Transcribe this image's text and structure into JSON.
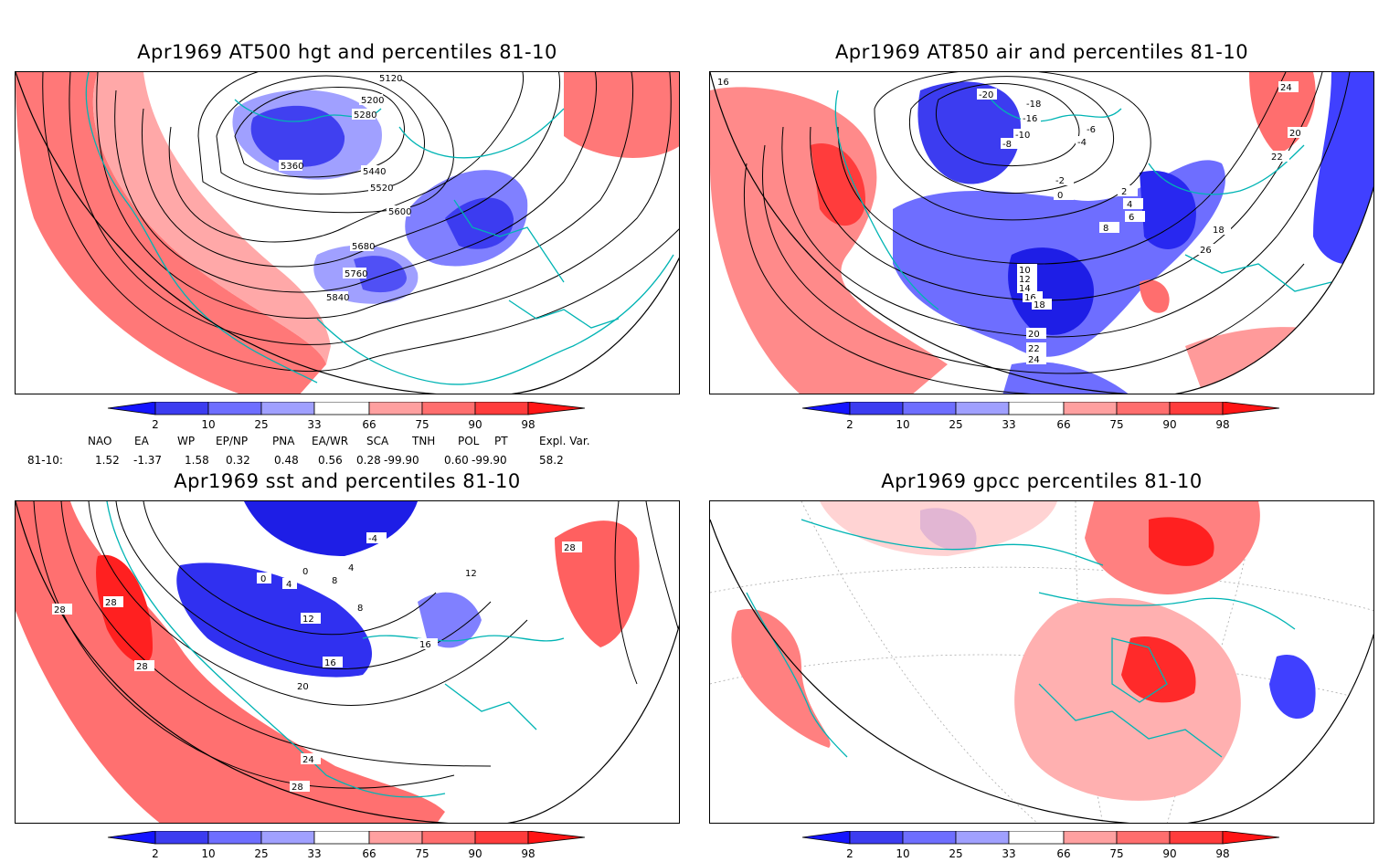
{
  "panels": [
    {
      "id": "p1",
      "title": "Apr1969 AT500 hgt and percentiles 81-10",
      "contour_labels": [
        "5120",
        "5200",
        "5280",
        "5360",
        "5440",
        "5520",
        "5600",
        "5680",
        "5760",
        "5840"
      ]
    },
    {
      "id": "p2",
      "title": "Apr1969 AT850 air and percentiles 81-10",
      "contour_labels": [
        "-20",
        "-18",
        "-16",
        "-10",
        "-8",
        "-6",
        "-4",
        "-2",
        "0",
        "2",
        "4",
        "6",
        "8",
        "10",
        "12",
        "14",
        "16",
        "18",
        "20",
        "22",
        "24",
        "26",
        "18",
        "20",
        "22",
        "24",
        "16"
      ]
    },
    {
      "id": "p3",
      "title": "Apr1969 sst and percentiles 81-10",
      "contour_labels": [
        "0",
        "4",
        "0",
        "8",
        "12",
        "16",
        "20",
        "24",
        "28",
        "28",
        "28",
        "28",
        "-4",
        "4",
        "8",
        "12",
        "16"
      ]
    },
    {
      "id": "p4",
      "title": "Apr1969 gpcc percentiles 81-10",
      "contour_labels": []
    }
  ],
  "colorbar": {
    "tick_labels": [
      "2",
      "10",
      "25",
      "33",
      "66",
      "75",
      "90",
      "98"
    ],
    "colors": {
      "deep_blue": "#1414ff",
      "blue": "#3c3cf0",
      "mid_blue": "#6e6eff",
      "light_blue": "#a0a0ff",
      "light_red": "#ffa0a0",
      "mid_red": "#ff6e6e",
      "red": "#ff3c3c",
      "deep_red": "#ff1414"
    }
  },
  "indices": {
    "headers": [
      "NAO",
      "EA",
      "WP",
      "EP/NP",
      "PNA",
      "EA/WR",
      "SCA",
      "TNH",
      "POL",
      "PT",
      "Expl. Var."
    ],
    "row_label": "81-10:",
    "values": [
      "1.52",
      "-1.37",
      "1.58",
      "0.32",
      "0.48",
      "0.56",
      "0.28",
      "-99.90",
      "0.60",
      "-99.90",
      "58.2"
    ]
  },
  "map_colors": {
    "coast": "#00b4b4",
    "contour": "#000000",
    "grid": "#aaaaaa"
  }
}
